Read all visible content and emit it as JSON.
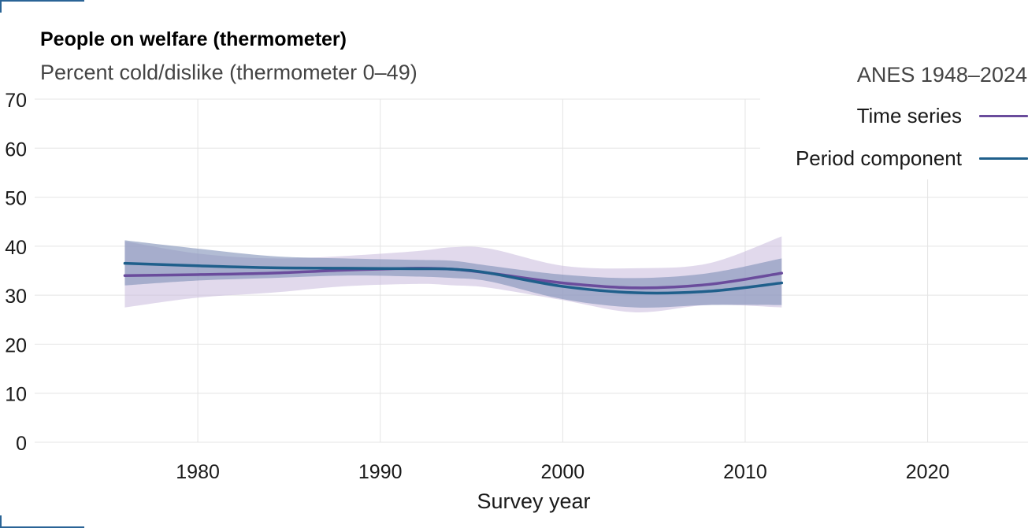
{
  "chart_data": {
    "type": "line",
    "title": "People on welfare (thermometer)",
    "subtitle": "Percent cold/dislike (thermometer 0–49)",
    "source": "ANES 1948–2024",
    "xlabel": "Survey year",
    "ylabel": "",
    "xlim": [
      1970.8,
      2025.5
    ],
    "ylim": [
      0,
      70
    ],
    "x_ticks": [
      1980,
      1990,
      2000,
      2010,
      2020
    ],
    "y_ticks": [
      0,
      10,
      20,
      30,
      40,
      50,
      60,
      70
    ],
    "grid": true,
    "legend_position": "top-right",
    "series": [
      {
        "name": "Time series",
        "color": "#6a4c9c",
        "band_color": "#c9b9dc",
        "x": [
          1976,
          1980,
          1984,
          1988,
          1992,
          1994,
          1996,
          2000,
          2004,
          2008,
          2012
        ],
        "values": [
          34.0,
          34.2,
          34.5,
          35.1,
          35.5,
          35.3,
          34.5,
          32.5,
          31.5,
          32.2,
          34.5
        ],
        "lower": [
          27.5,
          29.5,
          30.5,
          31.8,
          32.3,
          32.0,
          31.5,
          29.0,
          26.5,
          28.0,
          27.5
        ],
        "upper": [
          41.0,
          38.5,
          37.5,
          38.0,
          39.0,
          39.8,
          39.5,
          36.0,
          35.5,
          36.5,
          42.0
        ]
      },
      {
        "name": "Period component",
        "color": "#1f5f8b",
        "band_color": "#7e8fb8",
        "x": [
          1976,
          1980,
          1984,
          1988,
          1992,
          1994,
          1996,
          2000,
          2004,
          2008,
          2012
        ],
        "values": [
          36.5,
          36.0,
          35.6,
          35.5,
          35.4,
          35.3,
          34.5,
          31.8,
          30.5,
          30.8,
          32.5
        ],
        "lower": [
          32.0,
          33.0,
          33.5,
          34.0,
          33.8,
          33.5,
          32.8,
          29.2,
          27.5,
          28.0,
          28.0
        ],
        "upper": [
          41.2,
          39.5,
          38.0,
          37.5,
          37.2,
          37.0,
          36.0,
          34.2,
          33.5,
          34.5,
          37.5
        ]
      }
    ]
  }
}
